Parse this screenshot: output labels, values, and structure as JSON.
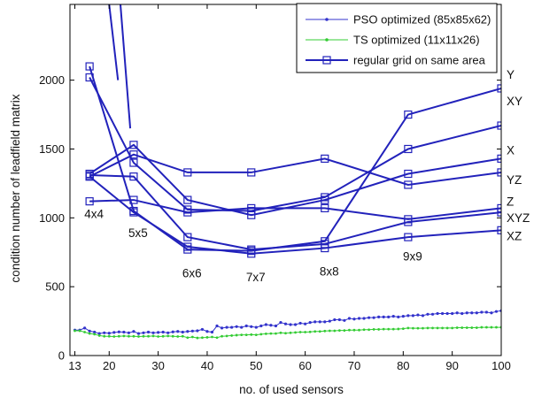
{
  "chart_data": {
    "type": "line",
    "xlabel": "no. of used sensors",
    "ylabel": "condition number of leadfield matrix",
    "xlim": [
      12,
      100
    ],
    "ylim": [
      0,
      2550
    ],
    "xticks": [
      13,
      20,
      30,
      40,
      50,
      60,
      70,
      80,
      90,
      100
    ],
    "yticks": [
      0,
      500,
      1000,
      1500,
      2000
    ],
    "grid": false,
    "legend_position": "top-right",
    "colors": {
      "pso": "#3333cc",
      "ts": "#33cc33",
      "regular": "#2222bb",
      "axis": "#000000"
    },
    "legend": [
      {
        "label": "PSO optimized (85x85x62)",
        "series": "pso"
      },
      {
        "label": "TS optimized (11x11x26)",
        "series": "ts"
      },
      {
        "label": "regular grid on same area",
        "series": "regular"
      }
    ],
    "pso_series": {
      "x": [
        13,
        14,
        15,
        16,
        17,
        18,
        19,
        20,
        21,
        22,
        23,
        24,
        25,
        26,
        27,
        28,
        29,
        30,
        31,
        32,
        33,
        34,
        35,
        36,
        37,
        38,
        39,
        40,
        41,
        42,
        43,
        44,
        45,
        46,
        47,
        48,
        49,
        50,
        51,
        52,
        53,
        54,
        55,
        56,
        57,
        58,
        59,
        60,
        61,
        62,
        63,
        64,
        65,
        66,
        67,
        68,
        69,
        70,
        71,
        72,
        73,
        74,
        75,
        76,
        77,
        78,
        79,
        80,
        81,
        82,
        83,
        84,
        85,
        86,
        87,
        88,
        89,
        90,
        91,
        92,
        93,
        94,
        95,
        96,
        97,
        98,
        99,
        100
      ],
      "y": [
        185,
        185,
        200,
        178,
        170,
        160,
        165,
        162,
        168,
        172,
        170,
        165,
        175,
        160,
        165,
        170,
        165,
        168,
        170,
        165,
        172,
        175,
        170,
        175,
        178,
        180,
        190,
        175,
        170,
        215,
        200,
        205,
        205,
        210,
        205,
        215,
        210,
        205,
        215,
        225,
        220,
        215,
        240,
        230,
        225,
        225,
        235,
        230,
        240,
        245,
        245,
        245,
        250,
        260,
        260,
        255,
        270,
        265,
        270,
        270,
        275,
        275,
        280,
        280,
        280,
        285,
        280,
        285,
        290,
        290,
        295,
        290,
        300,
        300,
        305,
        305,
        305,
        305,
        310,
        305,
        310,
        310,
        310,
        315,
        315,
        310,
        320,
        325
      ]
    },
    "ts_series": {
      "x": [
        13,
        14,
        15,
        16,
        17,
        18,
        19,
        20,
        21,
        22,
        23,
        24,
        25,
        26,
        27,
        28,
        29,
        30,
        31,
        32,
        33,
        34,
        35,
        36,
        37,
        38,
        39,
        40,
        41,
        42,
        43,
        44,
        45,
        46,
        47,
        48,
        49,
        50,
        51,
        52,
        53,
        54,
        55,
        56,
        57,
        58,
        59,
        60,
        61,
        62,
        63,
        64,
        65,
        66,
        67,
        68,
        69,
        70,
        71,
        72,
        73,
        74,
        75,
        76,
        77,
        78,
        79,
        80,
        81,
        82,
        83,
        84,
        85,
        86,
        87,
        88,
        89,
        90,
        91,
        92,
        93,
        94,
        95,
        96,
        97,
        98,
        99,
        100
      ],
      "y": [
        180,
        180,
        170,
        160,
        155,
        145,
        140,
        140,
        138,
        140,
        142,
        140,
        140,
        138,
        140,
        140,
        142,
        138,
        140,
        142,
        140,
        138,
        140,
        130,
        135,
        128,
        130,
        132,
        135,
        130,
        140,
        142,
        145,
        148,
        150,
        150,
        152,
        150,
        155,
        158,
        160,
        160,
        165,
        162,
        165,
        168,
        170,
        170,
        172,
        175,
        175,
        178,
        180,
        180,
        182,
        182,
        185,
        185,
        185,
        188,
        188,
        190,
        190,
        192,
        192,
        192,
        193,
        195,
        200,
        198,
        198,
        198,
        200,
        200,
        200,
        200,
        200,
        200,
        202,
        202,
        202,
        202,
        202,
        205,
        205,
        205,
        205,
        205
      ]
    },
    "regular_grid": {
      "x": [
        16,
        25,
        36,
        49,
        64,
        81,
        100
      ],
      "grid_labels": [
        "4x4",
        "5x5",
        "6x6",
        "7x7",
        "8x8",
        "9x9"
      ],
      "series": [
        {
          "name": "Y",
          "y": [
            2100,
            1050,
            770,
            760,
            830,
            1750,
            1940
          ]
        },
        {
          "name": "XY",
          "y": [
            2020,
            1400,
            1060,
            1050,
            1150,
            1500,
            1670
          ]
        },
        {
          "name": "X",
          "y": [
            1320,
            1530,
            1130,
            1020,
            1130,
            1320,
            1430
          ]
        },
        {
          "name": "YZ",
          "y": [
            1300,
            1460,
            1330,
            1330,
            1430,
            1240,
            1330
          ]
        },
        {
          "name": "Z",
          "y": [
            1120,
            1130,
            1040,
            1070,
            1070,
            990,
            1070
          ]
        },
        {
          "name": "XYZ",
          "y": [
            1310,
            1300,
            860,
            770,
            810,
            970,
            1040
          ]
        },
        {
          "name": "XZ",
          "y": [
            1300,
            1040,
            790,
            740,
            780,
            860,
            910
          ]
        }
      ],
      "offchart": [
        {
          "x": [
            20,
            21.8
          ],
          "y": [
            2550,
            2000
          ]
        },
        {
          "x": [
            22.3,
            24.3
          ],
          "y": [
            2550,
            1650
          ]
        }
      ]
    }
  }
}
